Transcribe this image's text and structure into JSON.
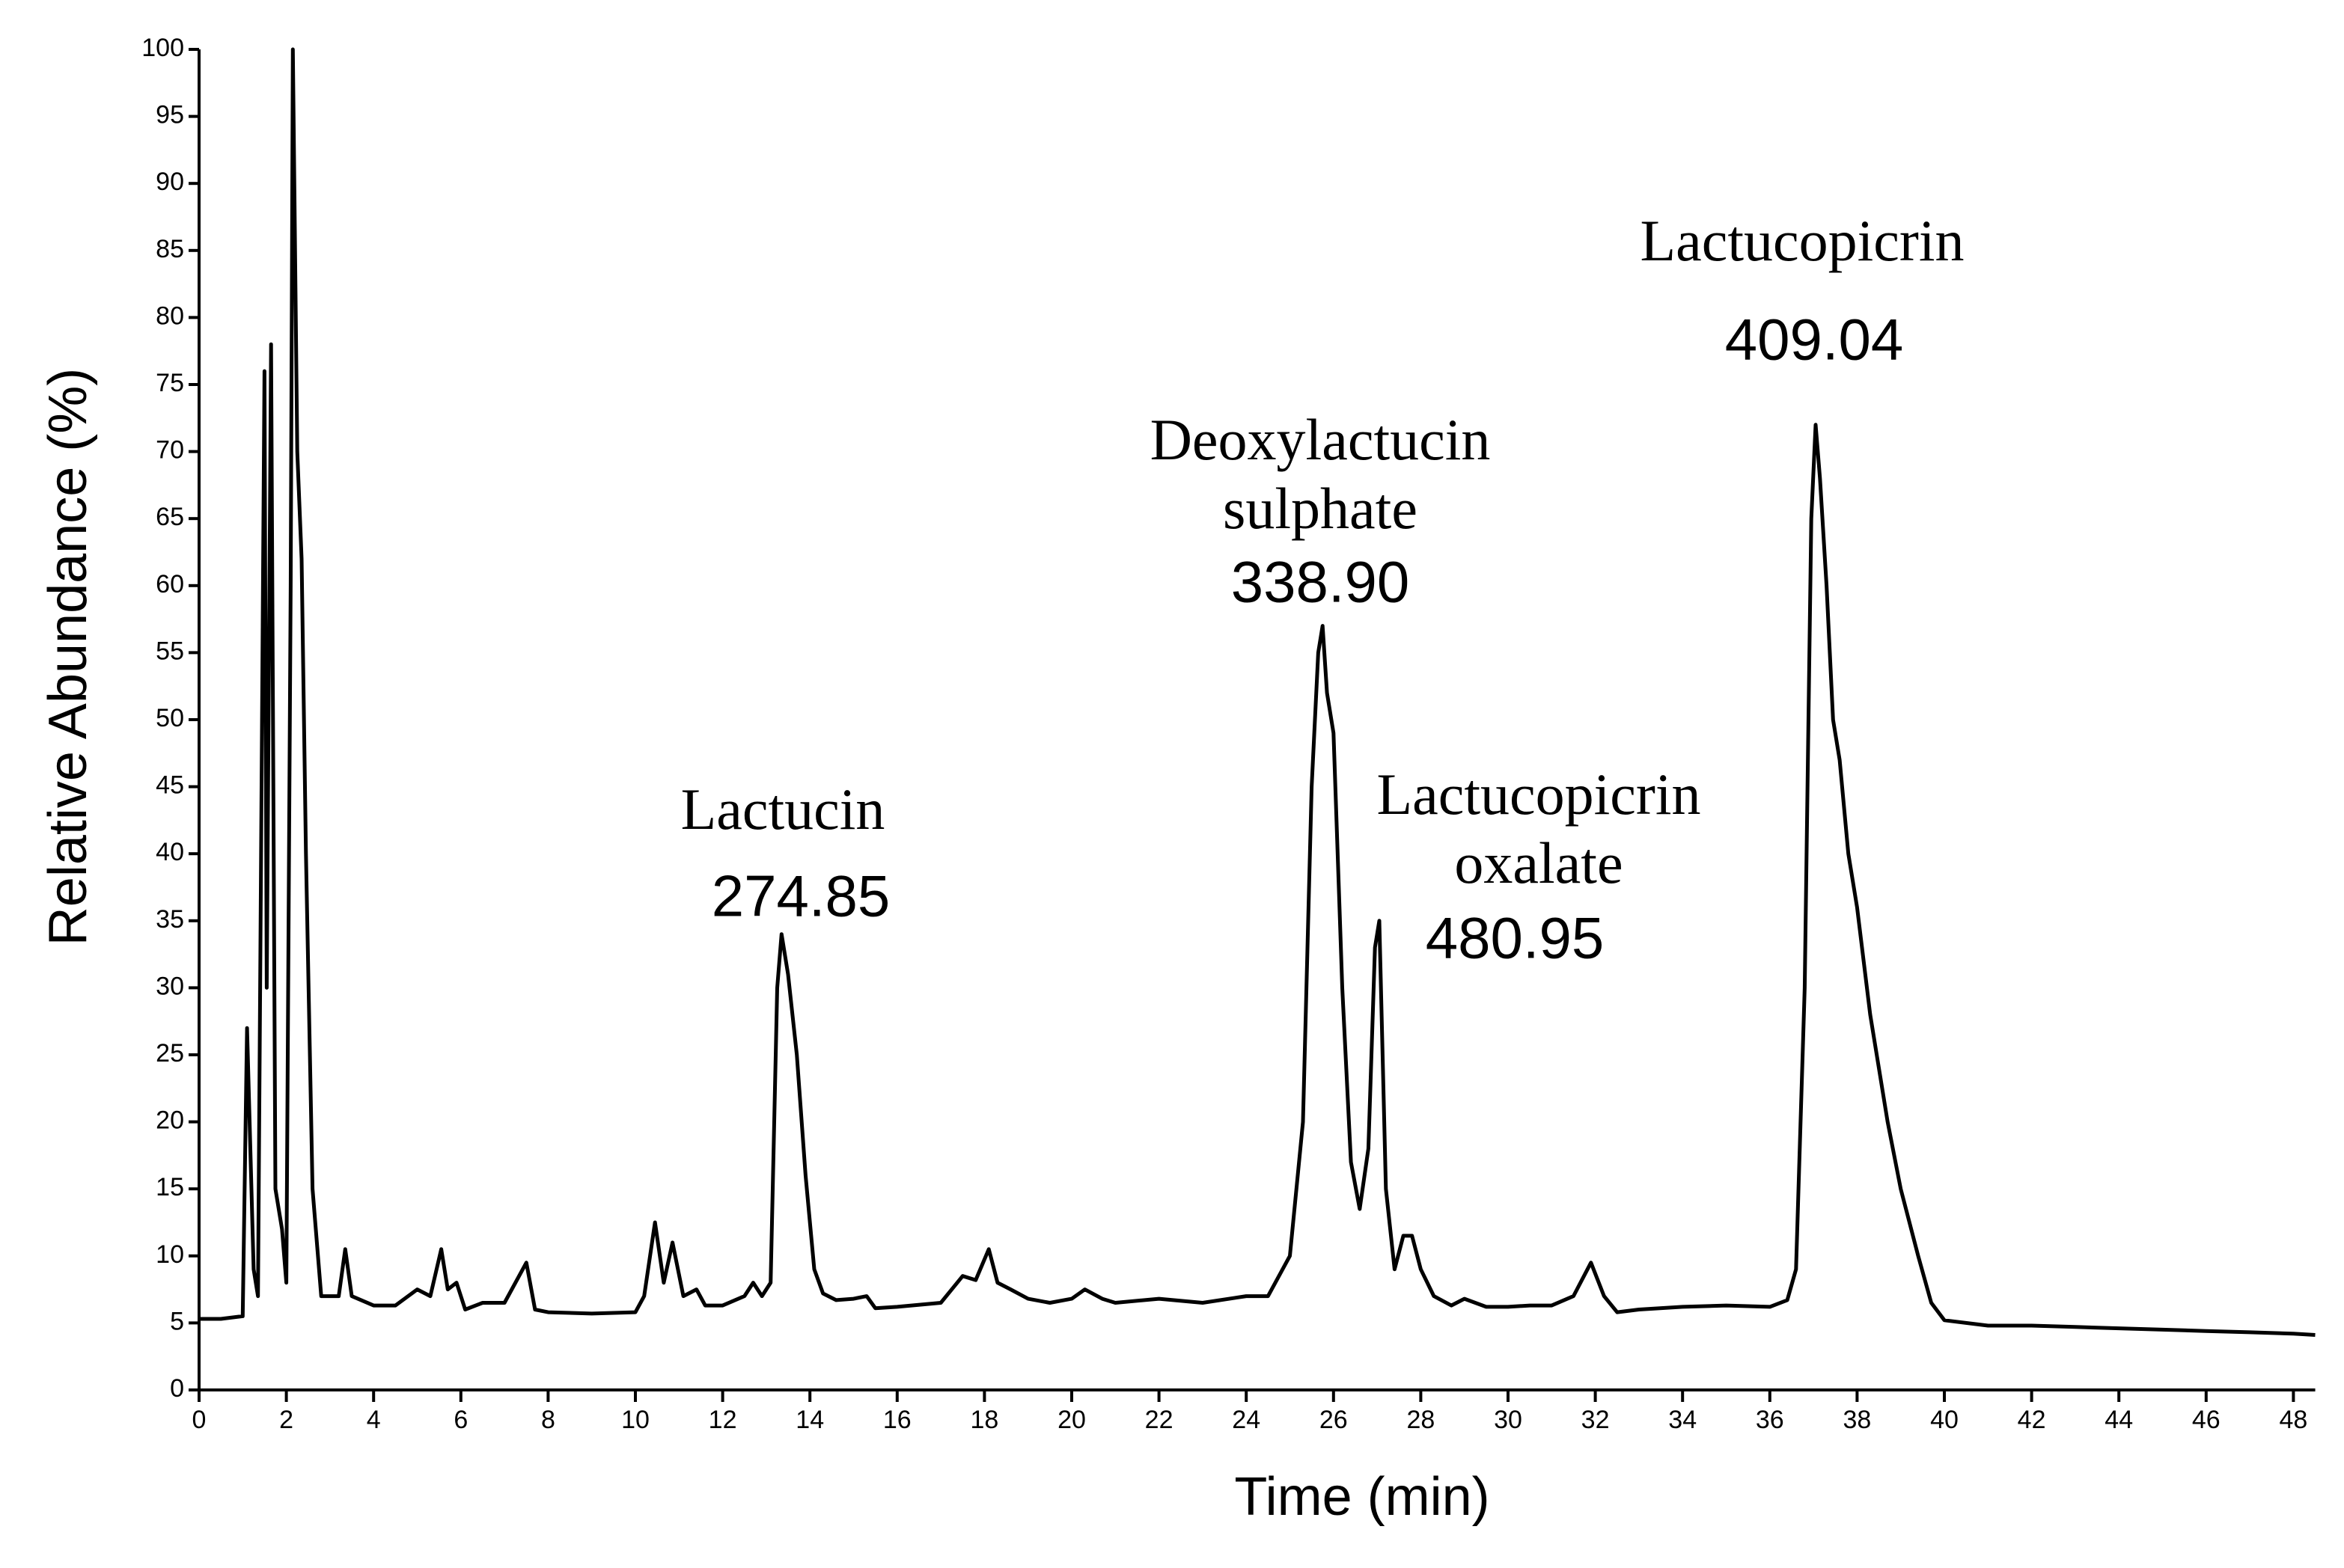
{
  "chart_data": {
    "type": "line",
    "xlabel": "Time (min)",
    "ylabel": "Relative Abundance (%)",
    "xlim": [
      0,
      48.5
    ],
    "ylim": [
      0,
      100
    ],
    "xticks": [
      0,
      2,
      4,
      6,
      8,
      10,
      12,
      14,
      16,
      18,
      20,
      22,
      24,
      26,
      28,
      30,
      32,
      34,
      36,
      38,
      40,
      42,
      44,
      46,
      48
    ],
    "yticks": [
      0,
      5,
      10,
      15,
      20,
      25,
      30,
      35,
      40,
      45,
      50,
      55,
      60,
      65,
      70,
      75,
      80,
      85,
      90,
      95,
      100
    ],
    "color": "#000000",
    "x": [
      0,
      0.5,
      1.0,
      1.1,
      1.25,
      1.35,
      1.5,
      1.55,
      1.65,
      1.75,
      1.9,
      2.0,
      2.1,
      2.15,
      2.25,
      2.35,
      2.45,
      2.6,
      2.8,
      3.2,
      3.35,
      3.5,
      4,
      4.5,
      5,
      5.3,
      5.55,
      5.7,
      5.9,
      6.1,
      6.5,
      7,
      7.5,
      7.7,
      8,
      9,
      10,
      10.2,
      10.45,
      10.65,
      10.85,
      11.1,
      11.4,
      11.6,
      12,
      12.5,
      12.7,
      12.9,
      13.1,
      13.25,
      13.35,
      13.5,
      13.7,
      13.9,
      14.1,
      14.3,
      14.6,
      15,
      15.3,
      15.5,
      16,
      17,
      17.5,
      17.8,
      18.1,
      18.3,
      18.6,
      19,
      19.5,
      20,
      20.3,
      20.7,
      21,
      22,
      23,
      24,
      24.5,
      25,
      25.3,
      25.5,
      25.65,
      25.75,
      25.85,
      26,
      26.2,
      26.4,
      26.6,
      26.8,
      26.95,
      27.05,
      27.2,
      27.4,
      27.6,
      27.8,
      28,
      28.3,
      28.7,
      29,
      29.5,
      30,
      30.5,
      31,
      31.5,
      31.9,
      32.2,
      32.5,
      33,
      34,
      35,
      36,
      36.4,
      36.6,
      36.8,
      36.95,
      37.05,
      37.15,
      37.3,
      37.45,
      37.6,
      37.8,
      38,
      38.3,
      38.7,
      39,
      39.4,
      39.7,
      40,
      41,
      42,
      43,
      44,
      45,
      46,
      47,
      48,
      48.5
    ],
    "values": [
      5.3,
      5.3,
      5.5,
      27,
      9,
      7,
      76,
      30,
      78,
      15,
      12,
      8,
      60,
      100,
      70,
      62,
      40,
      15,
      7,
      7,
      10.5,
      7,
      6.3,
      6.3,
      7.5,
      7,
      10.5,
      7.5,
      8,
      6,
      6.5,
      6.5,
      9.5,
      6,
      5.8,
      5.7,
      5.8,
      7,
      12.5,
      8,
      11,
      7,
      7.5,
      6.3,
      6.3,
      7,
      8,
      7,
      8,
      30,
      34,
      31,
      25,
      16,
      9,
      7.2,
      6.7,
      6.8,
      7,
      6.1,
      6.2,
      6.5,
      8.5,
      8.2,
      10.5,
      8,
      7.5,
      6.8,
      6.5,
      6.8,
      7.5,
      6.8,
      6.5,
      6.8,
      6.5,
      7,
      7,
      10,
      20,
      45,
      55,
      57,
      52,
      49,
      30,
      17,
      13.5,
      18,
      33,
      35,
      15,
      9,
      11.5,
      11.5,
      9,
      7,
      6.3,
      6.8,
      6.2,
      6.2,
      6.3,
      6.3,
      7,
      9.5,
      7,
      5.8,
      6,
      6.2,
      6.3,
      6.2,
      6.7,
      9,
      30,
      65,
      72,
      68,
      60,
      50,
      47,
      40,
      36,
      28,
      20,
      15,
      10,
      6.5,
      5.2,
      4.8,
      4.8,
      4.7,
      4.6,
      4.5,
      4.4,
      4.3,
      4.2,
      4.1
    ],
    "annotations": [
      {
        "lines": [
          "Lactucin"
        ],
        "mass": "274.85"
      },
      {
        "lines": [
          "Deoxylactucin",
          "sulphate"
        ],
        "mass": "338.90"
      },
      {
        "lines": [
          "Lactucopicrin",
          "oxalate"
        ],
        "mass": "480.95"
      },
      {
        "lines": [
          "Lactucopicrin"
        ],
        "mass": "409.04"
      }
    ]
  }
}
